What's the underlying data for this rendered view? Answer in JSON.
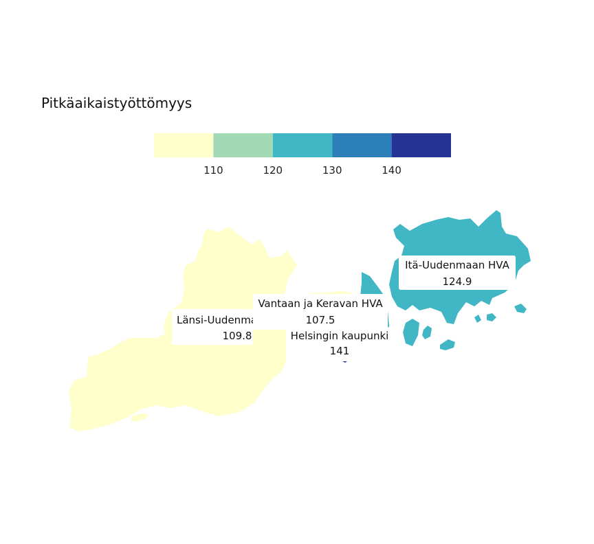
{
  "legend": {
    "title": "Pitkäaikaistyöttömyys",
    "breaks": [
      "110",
      "120",
      "130",
      "140"
    ],
    "colors": [
      "#ffffcc",
      "#a1dab4",
      "#41b6c4",
      "#2c7fb8",
      "#253494"
    ]
  },
  "regions": [
    {
      "id": "lansi",
      "name": "Länsi-Uudenmaan HVA",
      "value": 109.8,
      "value_label": "109.8",
      "color": "#ffffcc"
    },
    {
      "id": "vantaa",
      "name": "Vantaan ja Keravan HVA",
      "value": 107.5,
      "value_label": "107.5",
      "color": "#ffffcc"
    },
    {
      "id": "ita",
      "name": "Itä-Uudenmaan HVA",
      "value": 124.9,
      "value_label": "124.9",
      "color": "#41b6c4"
    },
    {
      "id": "helsinki",
      "name": "Helsingin kaupunki",
      "value": 141,
      "value_label": "141",
      "color": "#253494"
    }
  ]
}
